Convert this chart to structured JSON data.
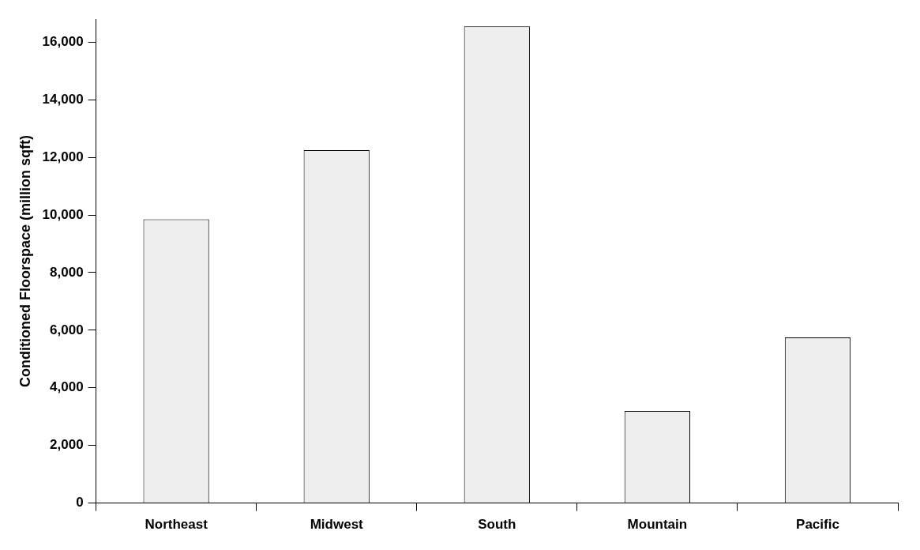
{
  "chart_data": {
    "type": "bar",
    "ylabel": "Conditioned Floorspace (million sqft)",
    "categories": [
      "Northeast",
      "Midwest",
      "South",
      "Mountain",
      "Pacific"
    ],
    "values": [
      9850,
      12250,
      16550,
      3200,
      5750
    ],
    "color": "#eeeeee",
    "ylim": [
      0,
      16800
    ],
    "yticks": [
      0,
      {
        "value": 2000,
        "label": "2,000"
      },
      {
        "value": 4000,
        "label": "4,000"
      },
      {
        "value": 6000,
        "label": "6,000"
      },
      {
        "value": 8000,
        "label": "8,000"
      },
      {
        "value": 10000,
        "label": "10,000"
      },
      {
        "value": 12000,
        "label": "12,000"
      },
      {
        "value": 14000,
        "label": "14,000"
      },
      {
        "value": 16000,
        "label": "16,000"
      }
    ],
    "grid": false,
    "legend": false
  }
}
